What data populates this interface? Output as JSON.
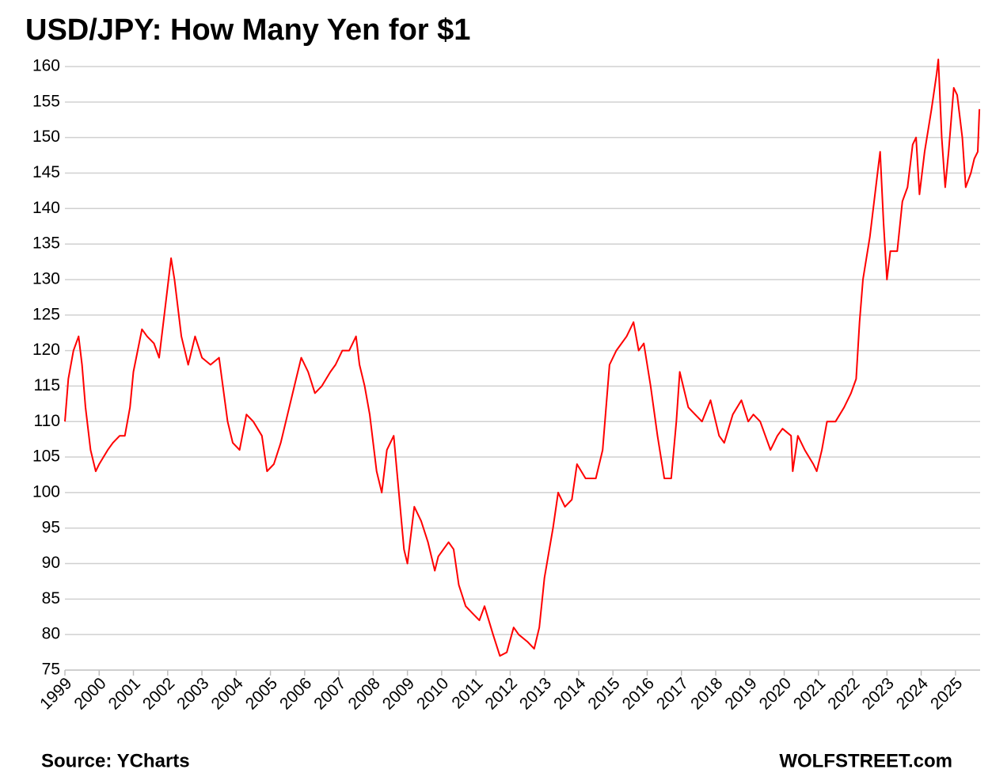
{
  "chart_data": {
    "type": "line",
    "title": "USD/JPY: How Many Yen for $1",
    "source": "Source: YCharts",
    "credit": "WOLFSTREET.com",
    "xlim": [
      1999,
      2025.72
    ],
    "xticks": [
      1999,
      2000,
      2001,
      2002,
      2003,
      2004,
      2005,
      2006,
      2007,
      2008,
      2009,
      2010,
      2011,
      2012,
      2013,
      2014,
      2015,
      2016,
      2017,
      2018,
      2019,
      2020,
      2021,
      2022,
      2023,
      2024,
      2025
    ],
    "ylim": [
      75,
      160
    ],
    "yticks": [
      75,
      80,
      85,
      90,
      95,
      100,
      105,
      110,
      115,
      120,
      125,
      130,
      135,
      140,
      145,
      150,
      155,
      160
    ],
    "grid": true,
    "series": [
      {
        "name": "USD/JPY",
        "color": "#ff0000",
        "x": [
          1999.0,
          1999.1,
          1999.25,
          1999.4,
          1999.5,
          1999.6,
          1999.75,
          1999.9,
          2000.0,
          2000.25,
          2000.4,
          2000.6,
          2000.75,
          2000.9,
          2001.0,
          2001.25,
          2001.4,
          2001.6,
          2001.75,
          2001.9,
          2002.1,
          2002.2,
          2002.4,
          2002.6,
          2002.8,
          2003.0,
          2003.25,
          2003.5,
          2003.75,
          2003.9,
          2004.1,
          2004.3,
          2004.5,
          2004.75,
          2004.9,
          2005.1,
          2005.3,
          2005.5,
          2005.75,
          2005.9,
          2006.1,
          2006.3,
          2006.5,
          2006.75,
          2006.9,
          2007.1,
          2007.3,
          2007.5,
          2007.6,
          2007.75,
          2007.9,
          2008.1,
          2008.25,
          2008.4,
          2008.6,
          2008.75,
          2008.9,
          2009.0,
          2009.2,
          2009.4,
          2009.6,
          2009.8,
          2009.9,
          2010.2,
          2010.35,
          2010.5,
          2010.7,
          2010.9,
          2011.1,
          2011.25,
          2011.5,
          2011.7,
          2011.9,
          2012.1,
          2012.25,
          2012.5,
          2012.7,
          2012.85,
          2013.0,
          2013.25,
          2013.4,
          2013.6,
          2013.8,
          2013.95,
          2014.2,
          2014.5,
          2014.7,
          2014.9,
          2015.1,
          2015.4,
          2015.6,
          2015.75,
          2015.9,
          2016.1,
          2016.3,
          2016.5,
          2016.7,
          2016.85,
          2016.95,
          2017.2,
          2017.4,
          2017.6,
          2017.85,
          2018.1,
          2018.25,
          2018.5,
          2018.75,
          2018.95,
          2019.1,
          2019.3,
          2019.6,
          2019.8,
          2019.95,
          2020.2,
          2020.25,
          2020.4,
          2020.6,
          2020.85,
          2020.95,
          2021.1,
          2021.25,
          2021.5,
          2021.75,
          2021.95,
          2022.1,
          2022.2,
          2022.3,
          2022.5,
          2022.75,
          2022.8,
          2022.9,
          2023.0,
          2023.1,
          2023.3,
          2023.45,
          2023.6,
          2023.75,
          2023.85,
          2023.95,
          2024.1,
          2024.3,
          2024.45,
          2024.5,
          2024.6,
          2024.7,
          2024.8,
          2024.95,
          2025.05,
          2025.2,
          2025.3,
          2025.45,
          2025.55,
          2025.65,
          2025.7
        ],
        "values": [
          110,
          116,
          120,
          122,
          118,
          112,
          106,
          103,
          104,
          106,
          107,
          108,
          108,
          112,
          117,
          123,
          122,
          121,
          119,
          125,
          133,
          130,
          122,
          118,
          122,
          119,
          118,
          119,
          110,
          107,
          106,
          111,
          110,
          108,
          103,
          104,
          107,
          111,
          116,
          119,
          117,
          114,
          115,
          117,
          118,
          120,
          120,
          122,
          118,
          115,
          111,
          103,
          100,
          106,
          108,
          100,
          92,
          90,
          98,
          96,
          93,
          89,
          91,
          93,
          92,
          87,
          84,
          83,
          82,
          84,
          80,
          77,
          77.5,
          81,
          80,
          79,
          78,
          81,
          88,
          95,
          100,
          98,
          99,
          104,
          102,
          102,
          106,
          118,
          120,
          122,
          124,
          120,
          121,
          115,
          108,
          102,
          102,
          110,
          117,
          112,
          111,
          110,
          113,
          108,
          107,
          111,
          113,
          110,
          111,
          110,
          106,
          108,
          109,
          108,
          103,
          108,
          106,
          104,
          103,
          106,
          110,
          110,
          112,
          114,
          116,
          124,
          130,
          136,
          146,
          148,
          138,
          130,
          134,
          134,
          141,
          143,
          149,
          150,
          142,
          148,
          154,
          159,
          161,
          150,
          143,
          148,
          157,
          156,
          150,
          143,
          145,
          147,
          148,
          154
        ]
      }
    ]
  }
}
